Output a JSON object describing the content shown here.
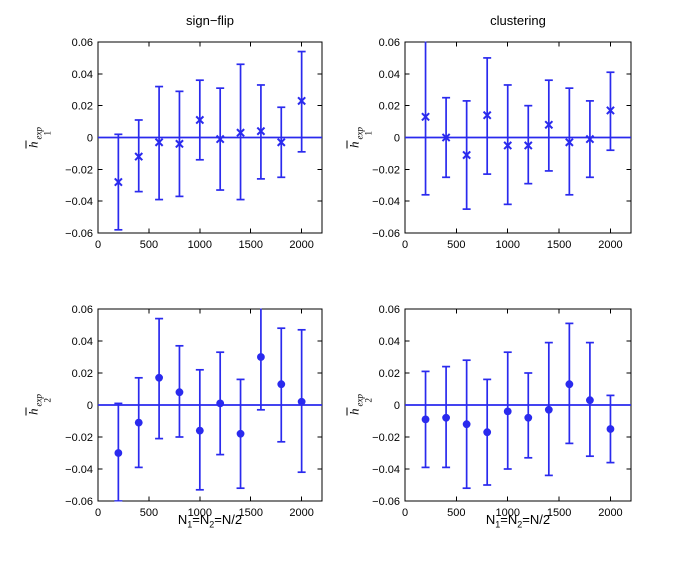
{
  "figure": {
    "background": "#ffffff",
    "plot_color": "#2a2aee",
    "axis_color": "#000000",
    "text_color": "#000000",
    "tick_font_size": 11,
    "title_left": "sign−flip",
    "title_right": "clustering"
  },
  "chart_data": [
    {
      "id": "top-left",
      "type": "scatter",
      "subtype": "errorbar",
      "title": "sign−flip",
      "marker": "x",
      "ylabel": "hbar_1^exp",
      "ylabel_parts": {
        "base": "h",
        "sub": "1",
        "sup": "exp"
      },
      "xlim": [
        0,
        2200
      ],
      "ylim": [
        -0.06,
        0.06
      ],
      "xticks": [
        0,
        500,
        1000,
        1500,
        2000
      ],
      "xtick_labels": [
        "0",
        "500",
        "1000",
        "1500",
        "2000"
      ],
      "yticks": [
        0.06,
        0.04,
        0.02,
        0,
        -0.02,
        -0.04,
        -0.06
      ],
      "ytick_labels": [
        "0.06",
        "0.04",
        "0.02",
        "0",
        "−0.02",
        "−0.04",
        "−0.06"
      ],
      "zero_line": 0,
      "grid": false,
      "x": [
        200,
        400,
        600,
        800,
        1000,
        1200,
        1400,
        1600,
        1800,
        2000
      ],
      "y": [
        -0.028,
        -0.012,
        -0.003,
        -0.004,
        0.011,
        -0.001,
        0.003,
        0.004,
        -0.003,
        0.023
      ],
      "y_lower": [
        -0.058,
        -0.034,
        -0.039,
        -0.037,
        -0.014,
        -0.033,
        -0.039,
        -0.026,
        -0.025,
        -0.009
      ],
      "y_upper": [
        0.002,
        0.011,
        0.032,
        0.029,
        0.036,
        0.031,
        0.046,
        0.033,
        0.019,
        0.054
      ]
    },
    {
      "id": "top-right",
      "type": "scatter",
      "subtype": "errorbar",
      "title": "clustering",
      "marker": "x",
      "ylabel": "hbar_1^exp",
      "ylabel_parts": {
        "base": "h",
        "sub": "1",
        "sup": "exp"
      },
      "xlim": [
        0,
        2200
      ],
      "ylim": [
        -0.06,
        0.06
      ],
      "xticks": [
        0,
        500,
        1000,
        1500,
        2000
      ],
      "xtick_labels": [
        "0",
        "500",
        "1000",
        "1500",
        "2000"
      ],
      "yticks": [
        0.06,
        0.04,
        0.02,
        0,
        -0.02,
        -0.04,
        -0.06
      ],
      "ytick_labels": [
        "0.06",
        "0.04",
        "0.02",
        "0",
        "−0.02",
        "−0.04",
        "−0.06"
      ],
      "zero_line": 0,
      "grid": false,
      "x": [
        200,
        400,
        600,
        800,
        1000,
        1200,
        1400,
        1600,
        1800,
        2000
      ],
      "y": [
        0.013,
        0.0,
        -0.011,
        0.014,
        -0.005,
        -0.005,
        0.008,
        -0.003,
        -0.001,
        0.017
      ],
      "y_lower": [
        -0.036,
        -0.025,
        -0.045,
        -0.023,
        -0.042,
        -0.029,
        -0.021,
        -0.036,
        -0.025,
        -0.008
      ],
      "y_upper": [
        0.061,
        0.025,
        0.023,
        0.05,
        0.033,
        0.02,
        0.036,
        0.031,
        0.023,
        0.041
      ]
    },
    {
      "id": "bottom-left",
      "type": "scatter",
      "subtype": "errorbar",
      "title": "",
      "marker": "o",
      "ylabel": "hbar_2^exp",
      "ylabel_parts": {
        "base": "h",
        "sub": "2",
        "sup": "exp"
      },
      "xlabel": "N_1=N_2=N/2",
      "xlabel_parts": {
        "p1": "N",
        "s1": "1",
        "p2": "=N",
        "s2": "2",
        "p3": "=N/2"
      },
      "xlim": [
        0,
        2200
      ],
      "ylim": [
        -0.06,
        0.06
      ],
      "xticks": [
        0,
        500,
        1000,
        1500,
        2000
      ],
      "xtick_labels": [
        "0",
        "500",
        "1000",
        "1500",
        "2000"
      ],
      "yticks": [
        0.06,
        0.04,
        0.02,
        0,
        -0.02,
        -0.04,
        -0.06
      ],
      "ytick_labels": [
        "0.06",
        "0.04",
        "0.02",
        "0",
        "−0.02",
        "−0.04",
        "−0.06"
      ],
      "zero_line": 0,
      "grid": false,
      "x": [
        200,
        400,
        600,
        800,
        1000,
        1200,
        1400,
        1600,
        1800,
        2000
      ],
      "y": [
        -0.03,
        -0.011,
        0.017,
        0.008,
        -0.016,
        0.001,
        -0.018,
        0.03,
        0.013,
        0.002
      ],
      "y_lower": [
        -0.06,
        -0.039,
        -0.021,
        -0.02,
        -0.053,
        -0.031,
        -0.052,
        -0.003,
        -0.023,
        -0.042
      ],
      "y_upper": [
        0.001,
        0.017,
        0.054,
        0.037,
        0.022,
        0.033,
        0.016,
        0.063,
        0.048,
        0.047
      ]
    },
    {
      "id": "bottom-right",
      "type": "scatter",
      "subtype": "errorbar",
      "title": "",
      "marker": "o",
      "ylabel": "hbar_2^exp",
      "ylabel_parts": {
        "base": "h",
        "sub": "2",
        "sup": "exp"
      },
      "xlabel": "N_1=N_2=N/2",
      "xlabel_parts": {
        "p1": "N",
        "s1": "1",
        "p2": "=N",
        "s2": "2",
        "p3": "=N/2"
      },
      "xlim": [
        0,
        2200
      ],
      "ylim": [
        -0.06,
        0.06
      ],
      "xticks": [
        0,
        500,
        1000,
        1500,
        2000
      ],
      "xtick_labels": [
        "0",
        "500",
        "1000",
        "1500",
        "2000"
      ],
      "yticks": [
        0.06,
        0.04,
        0.02,
        0,
        -0.02,
        -0.04,
        -0.06
      ],
      "ytick_labels": [
        "0.06",
        "0.04",
        "0.02",
        "0",
        "−0.02",
        "−0.04",
        "−0.06"
      ],
      "zero_line": 0,
      "grid": false,
      "x": [
        200,
        400,
        600,
        800,
        1000,
        1200,
        1400,
        1600,
        1800,
        2000
      ],
      "y": [
        -0.009,
        -0.008,
        -0.012,
        -0.017,
        -0.004,
        -0.008,
        -0.003,
        0.013,
        0.003,
        -0.015
      ],
      "y_lower": [
        -0.039,
        -0.039,
        -0.052,
        -0.05,
        -0.04,
        -0.033,
        -0.044,
        -0.024,
        -0.032,
        -0.036
      ],
      "y_upper": [
        0.021,
        0.024,
        0.028,
        0.016,
        0.033,
        0.02,
        0.039,
        0.051,
        0.039,
        0.006
      ]
    }
  ]
}
